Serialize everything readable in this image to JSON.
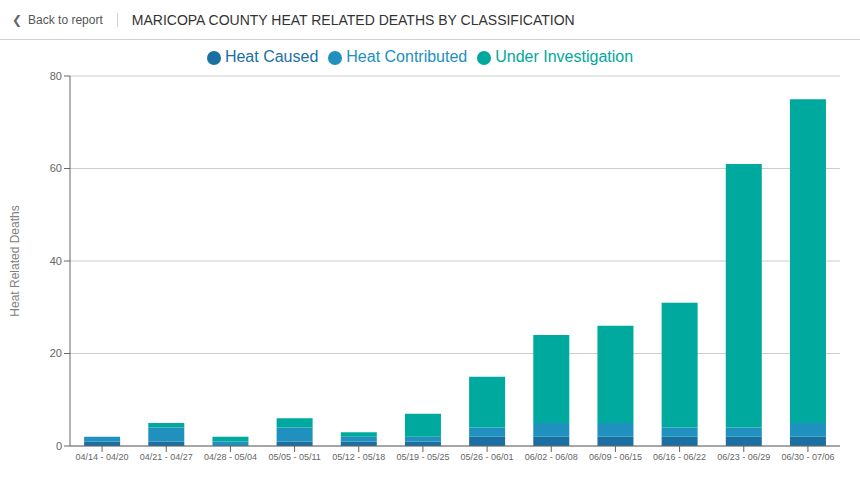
{
  "chart_data": {
    "type": "bar",
    "title": "MARICOPA COUNTY HEAT RELATED DEATHS BY CLASSIFICATION",
    "ylabel": "Heat Related Deaths",
    "annotations": [
      "❮",
      "Back to report"
    ],
    "categories": [
      "04/14 - 04/20",
      "04/21 - 04/27",
      "04/28 - 05/04",
      "05/05 - 05/11",
      "05/12 - 05/18",
      "05/19 - 05/25",
      "05/26 - 06/01",
      "06/02 - 06/08",
      "06/09 - 06/15",
      "06/16 - 06/22",
      "06/23 - 06/29",
      "06/30 - 07/06"
    ],
    "series": [
      {
        "name": "Heat Caused",
        "color": "#1a6fa3",
        "values": [
          1,
          1,
          0,
          1,
          1,
          1,
          2,
          2,
          2,
          2,
          2,
          2
        ]
      },
      {
        "name": "Heat Contributed",
        "color": "#2090bf",
        "values": [
          1,
          3,
          1,
          3,
          1,
          1,
          2,
          3,
          3,
          2,
          2,
          3
        ]
      },
      {
        "name": "Under Investigation",
        "color": "#00a99d",
        "values": [
          0,
          1,
          1,
          2,
          1,
          5,
          11,
          19,
          21,
          27,
          57,
          70
        ]
      }
    ],
    "ylim": [
      0,
      80
    ],
    "yticks": [
      0,
      20,
      40,
      60,
      80
    ],
    "grid": true,
    "stacked": true,
    "legend": "top"
  }
}
